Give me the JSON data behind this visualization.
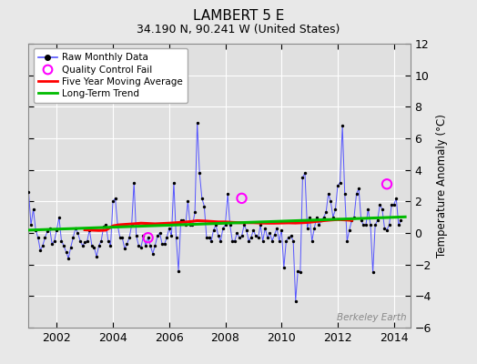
{
  "title": "LAMBERT 5 E",
  "subtitle": "34.190 N, 90.241 W (United States)",
  "ylabel": "Temperature Anomaly (°C)",
  "watermark": "Berkeley Earth",
  "xlim": [
    2001.0,
    2014.58
  ],
  "ylim": [
    -6,
    12
  ],
  "yticks": [
    -6,
    -4,
    -2,
    0,
    2,
    4,
    6,
    8,
    10,
    12
  ],
  "bg_color": "#e8e8e8",
  "plot_bg_color": "#e0e0e0",
  "raw_color": "#5555ff",
  "dot_color": "#000000",
  "moving_avg_color": "#ff0000",
  "trend_color": "#00bb00",
  "qc_fail_color": "#ff00ff",
  "raw_monthly": [
    [
      2001.0,
      2.6
    ],
    [
      2001.083,
      0.5
    ],
    [
      2001.167,
      1.5
    ],
    [
      2001.25,
      0.2
    ],
    [
      2001.333,
      -0.3
    ],
    [
      2001.417,
      -1.1
    ],
    [
      2001.5,
      -0.8
    ],
    [
      2001.583,
      -0.3
    ],
    [
      2001.667,
      0.1
    ],
    [
      2001.75,
      0.3
    ],
    [
      2001.833,
      -0.7
    ],
    [
      2001.917,
      -0.5
    ],
    [
      2002.0,
      0.2
    ],
    [
      2002.083,
      1.0
    ],
    [
      2002.167,
      -0.5
    ],
    [
      2002.25,
      -0.8
    ],
    [
      2002.333,
      -1.2
    ],
    [
      2002.417,
      -1.6
    ],
    [
      2002.5,
      -0.9
    ],
    [
      2002.583,
      -0.3
    ],
    [
      2002.667,
      0.3
    ],
    [
      2002.75,
      0.0
    ],
    [
      2002.833,
      -0.5
    ],
    [
      2002.917,
      -0.8
    ],
    [
      2003.0,
      -0.6
    ],
    [
      2003.083,
      -0.5
    ],
    [
      2003.167,
      0.2
    ],
    [
      2003.25,
      -0.8
    ],
    [
      2003.333,
      -0.9
    ],
    [
      2003.417,
      -1.5
    ],
    [
      2003.5,
      -0.8
    ],
    [
      2003.583,
      -0.5
    ],
    [
      2003.667,
      0.4
    ],
    [
      2003.75,
      0.5
    ],
    [
      2003.833,
      -0.5
    ],
    [
      2003.917,
      -0.8
    ],
    [
      2004.0,
      2.0
    ],
    [
      2004.083,
      2.2
    ],
    [
      2004.167,
      0.5
    ],
    [
      2004.25,
      -0.3
    ],
    [
      2004.333,
      -0.3
    ],
    [
      2004.417,
      -1.0
    ],
    [
      2004.5,
      -0.7
    ],
    [
      2004.583,
      -0.3
    ],
    [
      2004.667,
      0.5
    ],
    [
      2004.75,
      3.2
    ],
    [
      2004.833,
      -0.2
    ],
    [
      2004.917,
      -0.8
    ],
    [
      2005.0,
      -0.9
    ],
    [
      2005.083,
      -0.2
    ],
    [
      2005.167,
      -0.8
    ],
    [
      2005.25,
      -0.3
    ],
    [
      2005.333,
      -0.8
    ],
    [
      2005.417,
      -1.3
    ],
    [
      2005.5,
      -0.8
    ],
    [
      2005.583,
      -0.2
    ],
    [
      2005.667,
      0.0
    ],
    [
      2005.75,
      -0.7
    ],
    [
      2005.833,
      -0.7
    ],
    [
      2005.917,
      -0.3
    ],
    [
      2006.0,
      0.3
    ],
    [
      2006.083,
      -0.2
    ],
    [
      2006.167,
      3.2
    ],
    [
      2006.25,
      -0.3
    ],
    [
      2006.333,
      -2.4
    ],
    [
      2006.417,
      0.8
    ],
    [
      2006.5,
      0.8
    ],
    [
      2006.583,
      0.5
    ],
    [
      2006.667,
      2.0
    ],
    [
      2006.75,
      0.5
    ],
    [
      2006.833,
      0.5
    ],
    [
      2006.917,
      1.3
    ],
    [
      2007.0,
      7.0
    ],
    [
      2007.083,
      3.8
    ],
    [
      2007.167,
      2.2
    ],
    [
      2007.25,
      1.7
    ],
    [
      2007.333,
      -0.3
    ],
    [
      2007.417,
      -0.3
    ],
    [
      2007.5,
      -0.5
    ],
    [
      2007.583,
      0.2
    ],
    [
      2007.667,
      0.5
    ],
    [
      2007.75,
      -0.2
    ],
    [
      2007.833,
      -0.5
    ],
    [
      2007.917,
      0.3
    ],
    [
      2008.0,
      0.5
    ],
    [
      2008.083,
      2.5
    ],
    [
      2008.167,
      0.5
    ],
    [
      2008.25,
      -0.5
    ],
    [
      2008.333,
      -0.5
    ],
    [
      2008.417,
      0.0
    ],
    [
      2008.5,
      -0.3
    ],
    [
      2008.583,
      -0.2
    ],
    [
      2008.667,
      0.5
    ],
    [
      2008.75,
      0.2
    ],
    [
      2008.833,
      -0.5
    ],
    [
      2008.917,
      -0.3
    ],
    [
      2009.0,
      0.2
    ],
    [
      2009.083,
      -0.2
    ],
    [
      2009.167,
      -0.3
    ],
    [
      2009.25,
      0.5
    ],
    [
      2009.333,
      -0.5
    ],
    [
      2009.417,
      0.3
    ],
    [
      2009.5,
      -0.3
    ],
    [
      2009.583,
      0.0
    ],
    [
      2009.667,
      -0.5
    ],
    [
      2009.75,
      -0.1
    ],
    [
      2009.833,
      0.3
    ],
    [
      2009.917,
      -0.5
    ],
    [
      2010.0,
      0.2
    ],
    [
      2010.083,
      -2.2
    ],
    [
      2010.167,
      -0.5
    ],
    [
      2010.25,
      -0.3
    ],
    [
      2010.333,
      -0.2
    ],
    [
      2010.417,
      -0.5
    ],
    [
      2010.5,
      -4.3
    ],
    [
      2010.583,
      -2.4
    ],
    [
      2010.667,
      -2.5
    ],
    [
      2010.75,
      3.5
    ],
    [
      2010.833,
      3.8
    ],
    [
      2010.917,
      0.3
    ],
    [
      2011.0,
      1.0
    ],
    [
      2011.083,
      -0.5
    ],
    [
      2011.167,
      0.3
    ],
    [
      2011.25,
      1.0
    ],
    [
      2011.333,
      0.5
    ],
    [
      2011.417,
      0.8
    ],
    [
      2011.5,
      1.0
    ],
    [
      2011.583,
      1.3
    ],
    [
      2011.667,
      2.5
    ],
    [
      2011.75,
      2.0
    ],
    [
      2011.833,
      1.0
    ],
    [
      2011.917,
      1.5
    ],
    [
      2012.0,
      3.0
    ],
    [
      2012.083,
      3.2
    ],
    [
      2012.167,
      6.8
    ],
    [
      2012.25,
      2.5
    ],
    [
      2012.333,
      -0.5
    ],
    [
      2012.417,
      0.2
    ],
    [
      2012.5,
      0.8
    ],
    [
      2012.583,
      1.0
    ],
    [
      2012.667,
      2.5
    ],
    [
      2012.75,
      2.8
    ],
    [
      2012.833,
      0.8
    ],
    [
      2012.917,
      0.5
    ],
    [
      2013.0,
      0.5
    ],
    [
      2013.083,
      1.5
    ],
    [
      2013.167,
      0.5
    ],
    [
      2013.25,
      -2.5
    ],
    [
      2013.333,
      0.5
    ],
    [
      2013.417,
      0.8
    ],
    [
      2013.5,
      1.8
    ],
    [
      2013.583,
      1.5
    ],
    [
      2013.667,
      0.3
    ],
    [
      2013.75,
      0.2
    ],
    [
      2013.833,
      0.5
    ],
    [
      2013.917,
      1.8
    ],
    [
      2014.0,
      1.8
    ],
    [
      2014.083,
      2.2
    ],
    [
      2014.167,
      0.5
    ],
    [
      2014.25,
      0.8
    ]
  ],
  "qc_fail_points": [
    [
      2005.25,
      -0.3
    ],
    [
      2008.583,
      2.2
    ],
    [
      2013.75,
      3.1
    ]
  ],
  "moving_avg": [
    [
      2003.0,
      0.2
    ],
    [
      2003.25,
      0.18
    ],
    [
      2003.5,
      0.16
    ],
    [
      2003.75,
      0.18
    ],
    [
      2004.0,
      0.45
    ],
    [
      2004.25,
      0.52
    ],
    [
      2004.5,
      0.55
    ],
    [
      2004.75,
      0.58
    ],
    [
      2005.0,
      0.62
    ],
    [
      2005.25,
      0.6
    ],
    [
      2005.5,
      0.58
    ],
    [
      2005.75,
      0.6
    ],
    [
      2006.0,
      0.62
    ],
    [
      2006.25,
      0.65
    ],
    [
      2006.5,
      0.68
    ],
    [
      2006.75,
      0.72
    ],
    [
      2007.0,
      0.78
    ],
    [
      2007.25,
      0.76
    ],
    [
      2007.5,
      0.73
    ],
    [
      2007.75,
      0.7
    ],
    [
      2008.0,
      0.7
    ],
    [
      2008.25,
      0.67
    ],
    [
      2008.5,
      0.65
    ],
    [
      2008.75,
      0.65
    ],
    [
      2009.0,
      0.65
    ],
    [
      2009.25,
      0.63
    ],
    [
      2009.5,
      0.62
    ],
    [
      2009.75,
      0.62
    ],
    [
      2010.0,
      0.63
    ],
    [
      2010.25,
      0.64
    ],
    [
      2010.5,
      0.63
    ],
    [
      2010.75,
      0.65
    ],
    [
      2011.0,
      0.68
    ],
    [
      2011.25,
      0.73
    ],
    [
      2011.5,
      0.78
    ],
    [
      2011.75,
      0.82
    ],
    [
      2012.0,
      0.85
    ],
    [
      2012.25,
      0.83
    ],
    [
      2012.5,
      0.8
    ]
  ],
  "trend_line": [
    [
      2001.0,
      0.18
    ],
    [
      2014.4,
      1.02
    ]
  ]
}
